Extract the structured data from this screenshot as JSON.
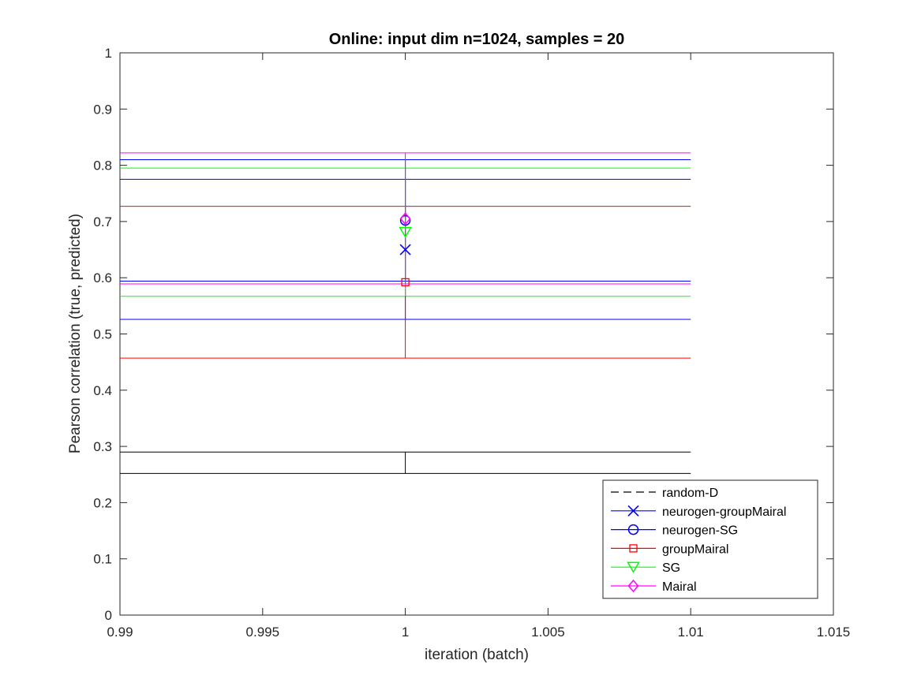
{
  "chart_data": {
    "type": "line",
    "title": "Online:  input dim n=1024, samples = 20",
    "xlabel": "iteration (batch)",
    "ylabel": "Pearson correlation (true, predicted)",
    "xlim": [
      0.99,
      1.015
    ],
    "ylim": [
      0,
      1
    ],
    "xticks": [
      0.99,
      0.995,
      1,
      1.005,
      1.01,
      1.015
    ],
    "xtick_labels": [
      "0.99",
      "0.995",
      "1",
      "1.005",
      "1.01",
      "1.015"
    ],
    "yticks": [
      0,
      0.1,
      0.2,
      0.3,
      0.4,
      0.5,
      0.6,
      0.7,
      0.8,
      0.9,
      1
    ],
    "ytick_labels": [
      "0",
      "0.1",
      "0.2",
      "0.3",
      "0.4",
      "0.5",
      "0.6",
      "0.7",
      "0.8",
      "0.9",
      "1"
    ],
    "grid": false,
    "legend_position": "bottom-right",
    "errorbar_x": 1,
    "band_x": [
      0.99,
      1.01
    ],
    "series": [
      {
        "name": "random-D",
        "color": "#000000",
        "marker": "none",
        "dash": true,
        "x": 1,
        "y": 0.271,
        "lower": 0.252,
        "upper": 0.29
      },
      {
        "name": "neurogen-groupMairal",
        "color": "#0000ff",
        "marker": "x",
        "dash": false,
        "x": 1,
        "y": 0.65,
        "lower": 0.526,
        "upper": 0.775
      },
      {
        "name": "neurogen-SG",
        "color": "#0000ff",
        "marker": "circle",
        "dash": false,
        "x": 1,
        "y": 0.702,
        "lower": 0.594,
        "upper": 0.81
      },
      {
        "name": "groupMairal",
        "color": "#ff0000",
        "marker": "square",
        "dash": false,
        "x": 1,
        "y": 0.592,
        "lower": 0.457,
        "upper": 0.727
      },
      {
        "name": "SG",
        "color": "#00ff00",
        "marker": "triangle-down",
        "dash": false,
        "x": 1,
        "y": 0.681,
        "lower": 0.567,
        "upper": 0.795
      },
      {
        "name": "Mairal",
        "color": "#ff00ff",
        "marker": "diamond",
        "dash": false,
        "x": 1,
        "y": 0.705,
        "lower": 0.589,
        "upper": 0.822
      }
    ]
  }
}
